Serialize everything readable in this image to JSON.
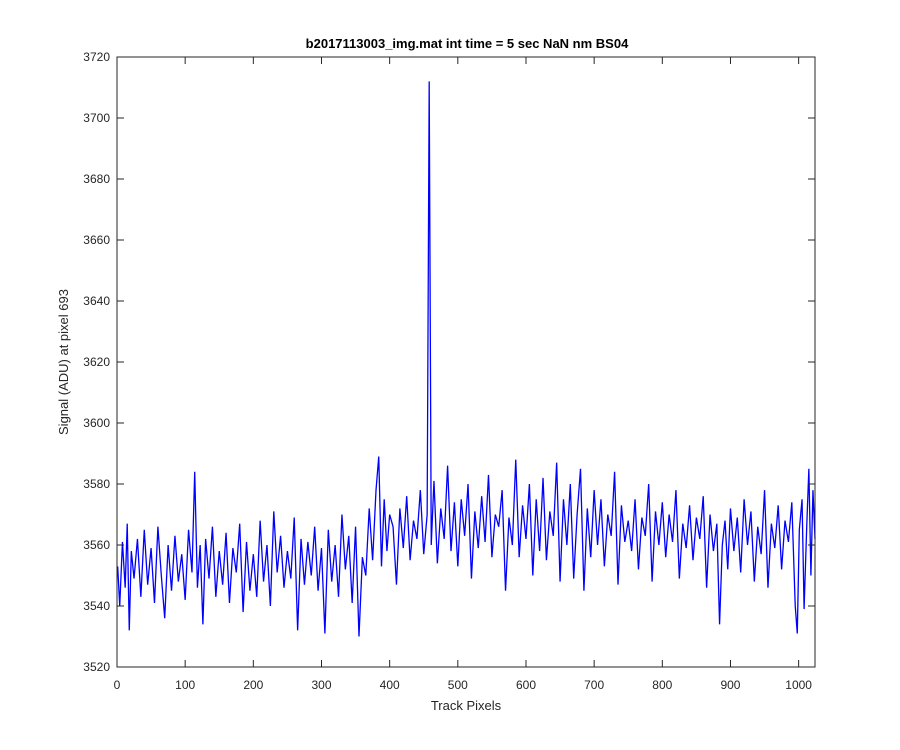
{
  "chart_data": {
    "type": "line",
    "title": "b2017113003_img.mat int time = 5 sec  NaN nm BS04",
    "xlabel": "Track Pixels",
    "ylabel": "Signal (ADU) at pixel 693",
    "xlim": [
      0,
      1024
    ],
    "ylim": [
      3520,
      3720
    ],
    "xticks": [
      0,
      100,
      200,
      300,
      400,
      500,
      600,
      700,
      800,
      900,
      1000
    ],
    "yticks": [
      3520,
      3540,
      3560,
      3580,
      3600,
      3620,
      3640,
      3660,
      3680,
      3700,
      3720
    ],
    "grid": false,
    "box": true,
    "series": [
      {
        "color": "#0000ff",
        "points": [
          [
            1,
            3553
          ],
          [
            4,
            3540
          ],
          [
            8,
            3561
          ],
          [
            12,
            3546
          ],
          [
            15,
            3567
          ],
          [
            18,
            3532
          ],
          [
            21,
            3558
          ],
          [
            25,
            3549
          ],
          [
            30,
            3562
          ],
          [
            35,
            3543
          ],
          [
            40,
            3565
          ],
          [
            45,
            3547
          ],
          [
            50,
            3559
          ],
          [
            55,
            3541
          ],
          [
            60,
            3566
          ],
          [
            65,
            3550
          ],
          [
            70,
            3536
          ],
          [
            75,
            3560
          ],
          [
            80,
            3545
          ],
          [
            85,
            3563
          ],
          [
            90,
            3548
          ],
          [
            95,
            3557
          ],
          [
            100,
            3542
          ],
          [
            105,
            3565
          ],
          [
            110,
            3551
          ],
          [
            114,
            3584
          ],
          [
            118,
            3546
          ],
          [
            122,
            3560
          ],
          [
            126,
            3534
          ],
          [
            130,
            3562
          ],
          [
            135,
            3549
          ],
          [
            140,
            3566
          ],
          [
            145,
            3543
          ],
          [
            150,
            3558
          ],
          [
            155,
            3547
          ],
          [
            160,
            3564
          ],
          [
            165,
            3541
          ],
          [
            170,
            3559
          ],
          [
            175,
            3551
          ],
          [
            180,
            3567
          ],
          [
            185,
            3538
          ],
          [
            190,
            3561
          ],
          [
            195,
            3545
          ],
          [
            200,
            3557
          ],
          [
            205,
            3543
          ],
          [
            210,
            3568
          ],
          [
            215,
            3548
          ],
          [
            220,
            3560
          ],
          [
            225,
            3540
          ],
          [
            230,
            3571
          ],
          [
            235,
            3551
          ],
          [
            240,
            3563
          ],
          [
            245,
            3546
          ],
          [
            250,
            3558
          ],
          [
            255,
            3549
          ],
          [
            260,
            3569
          ],
          [
            265,
            3532
          ],
          [
            270,
            3562
          ],
          [
            275,
            3547
          ],
          [
            280,
            3561
          ],
          [
            285,
            3550
          ],
          [
            290,
            3566
          ],
          [
            295,
            3545
          ],
          [
            300,
            3559
          ],
          [
            305,
            3531
          ],
          [
            310,
            3565
          ],
          [
            315,
            3548
          ],
          [
            320,
            3560
          ],
          [
            325,
            3543
          ],
          [
            330,
            3570
          ],
          [
            335,
            3552
          ],
          [
            340,
            3563
          ],
          [
            345,
            3541
          ],
          [
            350,
            3566
          ],
          [
            355,
            3530
          ],
          [
            360,
            3556
          ],
          [
            365,
            3550
          ],
          [
            370,
            3572
          ],
          [
            375,
            3555
          ],
          [
            380,
            3578
          ],
          [
            384,
            3589
          ],
          [
            388,
            3553
          ],
          [
            392,
            3575
          ],
          [
            396,
            3558
          ],
          [
            400,
            3570
          ],
          [
            405,
            3566
          ],
          [
            410,
            3547
          ],
          [
            415,
            3572
          ],
          [
            420,
            3559
          ],
          [
            425,
            3576
          ],
          [
            430,
            3555
          ],
          [
            435,
            3568
          ],
          [
            440,
            3562
          ],
          [
            445,
            3578
          ],
          [
            450,
            3557
          ],
          [
            455,
            3570
          ],
          [
            458,
            3712
          ],
          [
            461,
            3560
          ],
          [
            465,
            3581
          ],
          [
            470,
            3554
          ],
          [
            475,
            3572
          ],
          [
            480,
            3562
          ],
          [
            485,
            3586
          ],
          [
            490,
            3558
          ],
          [
            495,
            3574
          ],
          [
            500,
            3553
          ],
          [
            505,
            3575
          ],
          [
            510,
            3563
          ],
          [
            515,
            3580
          ],
          [
            520,
            3549
          ],
          [
            525,
            3571
          ],
          [
            530,
            3559
          ],
          [
            535,
            3576
          ],
          [
            540,
            3561
          ],
          [
            545,
            3583
          ],
          [
            550,
            3556
          ],
          [
            555,
            3570
          ],
          [
            560,
            3566
          ],
          [
            565,
            3578
          ],
          [
            570,
            3545
          ],
          [
            575,
            3569
          ],
          [
            580,
            3560
          ],
          [
            585,
            3588
          ],
          [
            590,
            3556
          ],
          [
            595,
            3573
          ],
          [
            600,
            3562
          ],
          [
            605,
            3580
          ],
          [
            610,
            3550
          ],
          [
            615,
            3575
          ],
          [
            620,
            3558
          ],
          [
            625,
            3582
          ],
          [
            630,
            3555
          ],
          [
            635,
            3571
          ],
          [
            640,
            3563
          ],
          [
            645,
            3587
          ],
          [
            650,
            3548
          ],
          [
            655,
            3575
          ],
          [
            660,
            3560
          ],
          [
            665,
            3580
          ],
          [
            670,
            3549
          ],
          [
            675,
            3570
          ],
          [
            680,
            3585
          ],
          [
            685,
            3545
          ],
          [
            690,
            3572
          ],
          [
            695,
            3556
          ],
          [
            700,
            3578
          ],
          [
            705,
            3560
          ],
          [
            710,
            3575
          ],
          [
            715,
            3553
          ],
          [
            720,
            3570
          ],
          [
            725,
            3563
          ],
          [
            730,
            3584
          ],
          [
            735,
            3547
          ],
          [
            740,
            3573
          ],
          [
            745,
            3561
          ],
          [
            750,
            3568
          ],
          [
            755,
            3558
          ],
          [
            760,
            3575
          ],
          [
            765,
            3552
          ],
          [
            770,
            3569
          ],
          [
            775,
            3563
          ],
          [
            780,
            3580
          ],
          [
            785,
            3548
          ],
          [
            790,
            3571
          ],
          [
            795,
            3560
          ],
          [
            800,
            3574
          ],
          [
            805,
            3556
          ],
          [
            810,
            3570
          ],
          [
            815,
            3561
          ],
          [
            820,
            3578
          ],
          [
            825,
            3549
          ],
          [
            830,
            3567
          ],
          [
            835,
            3559
          ],
          [
            840,
            3573
          ],
          [
            845,
            3555
          ],
          [
            850,
            3569
          ],
          [
            855,
            3562
          ],
          [
            860,
            3576
          ],
          [
            865,
            3546
          ],
          [
            870,
            3570
          ],
          [
            875,
            3558
          ],
          [
            880,
            3567
          ],
          [
            884,
            3534
          ],
          [
            888,
            3560
          ],
          [
            892,
            3568
          ],
          [
            896,
            3552
          ],
          [
            900,
            3572
          ],
          [
            905,
            3558
          ],
          [
            910,
            3569
          ],
          [
            915,
            3551
          ],
          [
            920,
            3575
          ],
          [
            925,
            3560
          ],
          [
            930,
            3571
          ],
          [
            935,
            3548
          ],
          [
            940,
            3566
          ],
          [
            945,
            3557
          ],
          [
            950,
            3578
          ],
          [
            955,
            3546
          ],
          [
            960,
            3567
          ],
          [
            965,
            3559
          ],
          [
            970,
            3573
          ],
          [
            975,
            3552
          ],
          [
            980,
            3568
          ],
          [
            985,
            3561
          ],
          [
            990,
            3574
          ],
          [
            995,
            3540
          ],
          [
            998,
            3531
          ],
          [
            1001,
            3565
          ],
          [
            1005,
            3575
          ],
          [
            1008,
            3539
          ],
          [
            1012,
            3567
          ],
          [
            1015,
            3585
          ],
          [
            1018,
            3550
          ],
          [
            1021,
            3578
          ],
          [
            1024,
            3562
          ]
        ]
      }
    ]
  }
}
